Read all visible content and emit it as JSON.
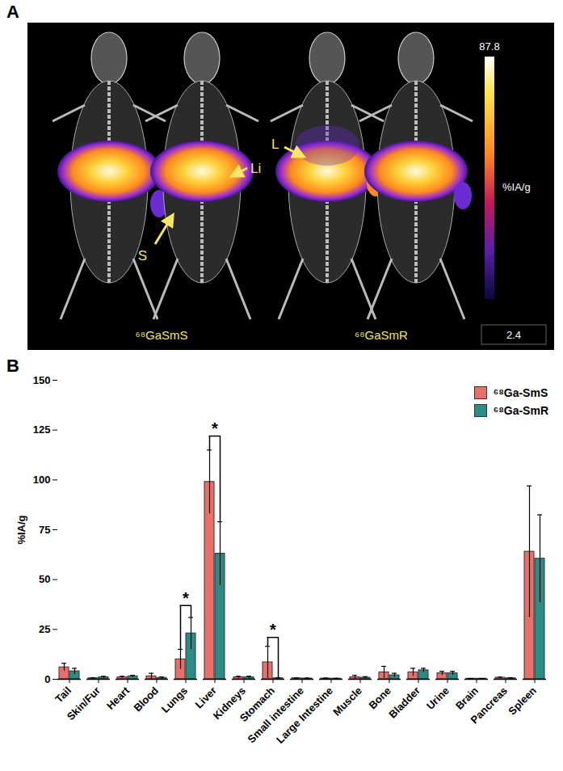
{
  "panel_a": {
    "panel_label": "A",
    "arrow_labels": [
      "S",
      "Li",
      "L"
    ],
    "captions": [
      "⁶⁸GaSmS",
      "⁶⁸GaSmR"
    ],
    "colorbar": {
      "max": 87.8,
      "min": 2.4,
      "label": "%IA/g"
    }
  },
  "chart_data": {
    "type": "bar",
    "panel_label": "B",
    "categories": [
      "Tail",
      "Skin/Fur",
      "Heart",
      "Blood",
      "Lungs",
      "Liver",
      "Kidneys",
      "Stomach",
      "Small intestine",
      "Large Intestine",
      "Muscle",
      "Bone",
      "Bladder",
      "Urine",
      "Brain",
      "Pancreas",
      "Spleen"
    ],
    "series": [
      {
        "name": "⁶⁸Ga-SmS",
        "color": "#e8706a",
        "values": [
          6,
          0.5,
          1,
          1.5,
          10,
          99,
          1,
          8.5,
          0.5,
          0.4,
          1,
          3.5,
          3.5,
          3,
          0.3,
          0.8,
          64
        ],
        "errors": [
          2,
          0.3,
          0.5,
          1.5,
          5,
          16,
          0.5,
          8,
          0.2,
          0.2,
          1,
          3,
          2,
          1,
          0.1,
          0.3,
          33
        ]
      },
      {
        "name": "⁶⁸Ga-SmR",
        "color": "#2a8c84",
        "values": [
          4,
          1,
          1.5,
          0.7,
          23,
          63,
          1,
          0.5,
          0.4,
          0.3,
          0.8,
          2,
          4.5,
          3,
          0.3,
          0.5,
          60.5
        ],
        "errors": [
          1.5,
          0.5,
          0.5,
          0.5,
          8,
          16,
          0.5,
          0.3,
          0.2,
          0.2,
          0.5,
          1,
          1,
          1,
          0.1,
          0.3,
          22
        ]
      }
    ],
    "y_label": "%IA/g",
    "ylim": [
      0,
      150
    ],
    "yticks": [
      0,
      25,
      50,
      75,
      100,
      125,
      150
    ],
    "grid": false,
    "legend": "top-right",
    "significance": [
      {
        "category": "Lungs",
        "label": "*",
        "y": 37
      },
      {
        "category": "Liver",
        "label": "*",
        "y": 122
      },
      {
        "category": "Stomach",
        "label": "*",
        "y": 21
      }
    ]
  }
}
